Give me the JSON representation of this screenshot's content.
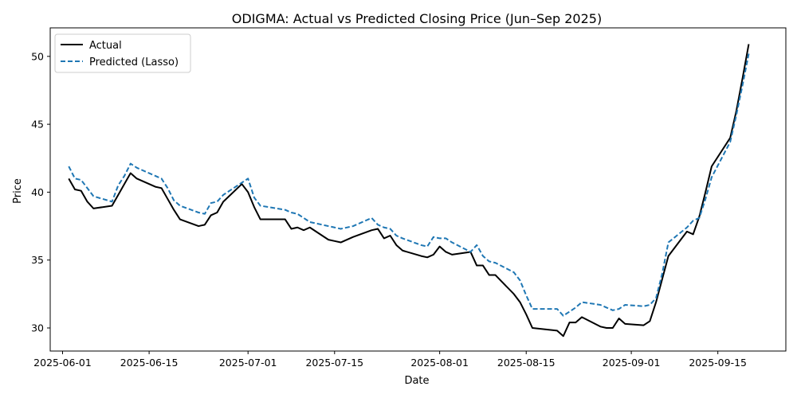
{
  "chart_data": {
    "type": "line",
    "title": "ODIGMA: Actual vs Predicted Closing Price (Jun–Sep 2025)",
    "xlabel": "Date",
    "ylabel": "Price",
    "xlim": [
      "2025-05-30",
      "2025-09-26"
    ],
    "ylim": [
      28.3,
      52.1
    ],
    "x_ticks": [
      "2025-06-01",
      "2025-06-15",
      "2025-07-01",
      "2025-07-15",
      "2025-08-01",
      "2025-08-15",
      "2025-09-01",
      "2025-09-15"
    ],
    "y_ticks": [
      30,
      35,
      40,
      45,
      50
    ],
    "grid": false,
    "legend": "top-left",
    "series": [
      {
        "name": "Actual",
        "color": "#000000",
        "style": "solid",
        "points": [
          [
            "2025-06-02",
            41.0
          ],
          [
            "2025-06-03",
            40.2
          ],
          [
            "2025-06-04",
            40.1
          ],
          [
            "2025-06-05",
            39.3
          ],
          [
            "2025-06-06",
            38.8
          ],
          [
            "2025-06-09",
            39.0
          ],
          [
            "2025-06-10",
            39.8
          ],
          [
            "2025-06-11",
            40.6
          ],
          [
            "2025-06-12",
            41.4
          ],
          [
            "2025-06-13",
            41.0
          ],
          [
            "2025-06-16",
            40.4
          ],
          [
            "2025-06-17",
            40.3
          ],
          [
            "2025-06-18",
            39.5
          ],
          [
            "2025-06-19",
            38.7
          ],
          [
            "2025-06-20",
            38.0
          ],
          [
            "2025-06-23",
            37.5
          ],
          [
            "2025-06-24",
            37.6
          ],
          [
            "2025-06-25",
            38.3
          ],
          [
            "2025-06-26",
            38.5
          ],
          [
            "2025-06-27",
            39.3
          ],
          [
            "2025-06-30",
            40.6
          ],
          [
            "2025-07-01",
            40.0
          ],
          [
            "2025-07-02",
            38.9
          ],
          [
            "2025-07-03",
            38.0
          ],
          [
            "2025-07-07",
            38.0
          ],
          [
            "2025-07-08",
            37.3
          ],
          [
            "2025-07-09",
            37.4
          ],
          [
            "2025-07-10",
            37.2
          ],
          [
            "2025-07-11",
            37.4
          ],
          [
            "2025-07-14",
            36.5
          ],
          [
            "2025-07-15",
            36.4
          ],
          [
            "2025-07-16",
            36.3
          ],
          [
            "2025-07-18",
            36.7
          ],
          [
            "2025-07-21",
            37.2
          ],
          [
            "2025-07-22",
            37.3
          ],
          [
            "2025-07-23",
            36.6
          ],
          [
            "2025-07-24",
            36.8
          ],
          [
            "2025-07-25",
            36.1
          ],
          [
            "2025-07-26",
            35.7
          ],
          [
            "2025-07-29",
            35.3
          ],
          [
            "2025-07-30",
            35.2
          ],
          [
            "2025-07-31",
            35.4
          ],
          [
            "2025-08-01",
            36.0
          ],
          [
            "2025-08-02",
            35.6
          ],
          [
            "2025-08-03",
            35.4
          ],
          [
            "2025-08-06",
            35.6
          ],
          [
            "2025-08-07",
            34.6
          ],
          [
            "2025-08-08",
            34.6
          ],
          [
            "2025-08-09",
            33.9
          ],
          [
            "2025-08-10",
            33.9
          ],
          [
            "2025-08-13",
            32.5
          ],
          [
            "2025-08-14",
            31.9
          ],
          [
            "2025-08-15",
            31.0
          ],
          [
            "2025-08-16",
            30.0
          ],
          [
            "2025-08-20",
            29.8
          ],
          [
            "2025-08-21",
            29.4
          ],
          [
            "2025-08-22",
            30.4
          ],
          [
            "2025-08-23",
            30.4
          ],
          [
            "2025-08-24",
            30.8
          ],
          [
            "2025-08-27",
            30.1
          ],
          [
            "2025-08-28",
            30.0
          ],
          [
            "2025-08-29",
            30.0
          ],
          [
            "2025-08-30",
            30.7
          ],
          [
            "2025-08-31",
            30.3
          ],
          [
            "2025-09-03",
            30.2
          ],
          [
            "2025-09-04",
            30.5
          ],
          [
            "2025-09-05",
            31.9
          ],
          [
            "2025-09-06",
            33.6
          ],
          [
            "2025-09-07",
            35.3
          ],
          [
            "2025-09-10",
            37.1
          ],
          [
            "2025-09-11",
            36.9
          ],
          [
            "2025-09-12",
            38.2
          ],
          [
            "2025-09-13",
            40.0
          ],
          [
            "2025-09-14",
            41.9
          ],
          [
            "2025-09-17",
            44.0
          ],
          [
            "2025-09-18",
            46.0
          ],
          [
            "2025-09-19",
            48.4
          ],
          [
            "2025-09-20",
            50.9
          ]
        ]
      },
      {
        "name": "Predicted (Lasso)",
        "color": "#1f77b4",
        "style": "dashed",
        "points": [
          [
            "2025-06-02",
            41.9
          ],
          [
            "2025-06-03",
            41.0
          ],
          [
            "2025-06-04",
            40.9
          ],
          [
            "2025-06-05",
            40.3
          ],
          [
            "2025-06-06",
            39.7
          ],
          [
            "2025-06-09",
            39.3
          ],
          [
            "2025-06-10",
            40.5
          ],
          [
            "2025-06-11",
            41.2
          ],
          [
            "2025-06-12",
            42.1
          ],
          [
            "2025-06-13",
            41.8
          ],
          [
            "2025-06-16",
            41.2
          ],
          [
            "2025-06-17",
            41.0
          ],
          [
            "2025-06-18",
            40.3
          ],
          [
            "2025-06-19",
            39.4
          ],
          [
            "2025-06-20",
            39.0
          ],
          [
            "2025-06-23",
            38.5
          ],
          [
            "2025-06-24",
            38.4
          ],
          [
            "2025-06-25",
            39.2
          ],
          [
            "2025-06-26",
            39.3
          ],
          [
            "2025-06-27",
            39.8
          ],
          [
            "2025-06-30",
            40.7
          ],
          [
            "2025-07-01",
            41.0
          ],
          [
            "2025-07-02",
            39.6
          ],
          [
            "2025-07-03",
            39.0
          ],
          [
            "2025-07-07",
            38.7
          ],
          [
            "2025-07-08",
            38.5
          ],
          [
            "2025-07-09",
            38.4
          ],
          [
            "2025-07-10",
            38.1
          ],
          [
            "2025-07-11",
            37.8
          ],
          [
            "2025-07-14",
            37.5
          ],
          [
            "2025-07-15",
            37.4
          ],
          [
            "2025-07-16",
            37.3
          ],
          [
            "2025-07-18",
            37.5
          ],
          [
            "2025-07-21",
            38.1
          ],
          [
            "2025-07-22",
            37.6
          ],
          [
            "2025-07-23",
            37.4
          ],
          [
            "2025-07-24",
            37.3
          ],
          [
            "2025-07-25",
            36.8
          ],
          [
            "2025-07-26",
            36.6
          ],
          [
            "2025-07-29",
            36.1
          ],
          [
            "2025-07-30",
            36.0
          ],
          [
            "2025-07-31",
            36.7
          ],
          [
            "2025-08-01",
            36.6
          ],
          [
            "2025-08-02",
            36.6
          ],
          [
            "2025-08-03",
            36.3
          ],
          [
            "2025-08-06",
            35.6
          ],
          [
            "2025-08-07",
            36.1
          ],
          [
            "2025-08-08",
            35.3
          ],
          [
            "2025-08-09",
            34.9
          ],
          [
            "2025-08-10",
            34.8
          ],
          [
            "2025-08-13",
            34.1
          ],
          [
            "2025-08-14",
            33.5
          ],
          [
            "2025-08-15",
            32.4
          ],
          [
            "2025-08-16",
            31.4
          ],
          [
            "2025-08-20",
            31.4
          ],
          [
            "2025-08-21",
            30.9
          ],
          [
            "2025-08-22",
            31.2
          ],
          [
            "2025-08-23",
            31.5
          ],
          [
            "2025-08-24",
            31.9
          ],
          [
            "2025-08-27",
            31.7
          ],
          [
            "2025-08-28",
            31.5
          ],
          [
            "2025-08-29",
            31.3
          ],
          [
            "2025-08-30",
            31.4
          ],
          [
            "2025-08-31",
            31.7
          ],
          [
            "2025-09-03",
            31.6
          ],
          [
            "2025-09-04",
            31.7
          ],
          [
            "2025-09-05",
            32.2
          ],
          [
            "2025-09-06",
            34.0
          ],
          [
            "2025-09-07",
            36.3
          ],
          [
            "2025-09-10",
            37.4
          ],
          [
            "2025-09-11",
            37.9
          ],
          [
            "2025-09-12",
            38.1
          ],
          [
            "2025-09-13",
            39.5
          ],
          [
            "2025-09-14",
            41.1
          ],
          [
            "2025-09-17",
            43.7
          ],
          [
            "2025-09-18",
            45.7
          ],
          [
            "2025-09-19",
            47.9
          ],
          [
            "2025-09-20",
            50.2
          ]
        ]
      }
    ]
  }
}
